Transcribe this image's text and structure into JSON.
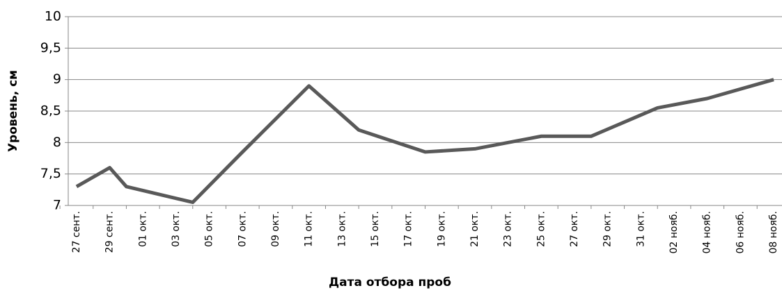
{
  "chart_data": {
    "type": "line",
    "x_label": "Дата отбора проб",
    "y_label": "Уровень, см",
    "x": [
      "09-27",
      "09-29",
      "09-30",
      "10-04",
      "10-07",
      "10-11",
      "10-14",
      "10-18",
      "10-21",
      "10-25",
      "10-28",
      "11-01",
      "11-04",
      "11-08"
    ],
    "series": [
      {
        "color": "#595959",
        "values": [
          7.3,
          7.6,
          7.3,
          7.05,
          7.85,
          8.9,
          8.2,
          7.85,
          7.9,
          8.1,
          8.1,
          8.55,
          8.7,
          9.0
        ]
      }
    ],
    "xlim": [
      "09-27",
      "11-08"
    ],
    "xticks": [
      {
        "value": "09-27",
        "label": "27 сент."
      },
      {
        "value": "09-29",
        "label": "29 сент."
      },
      {
        "value": "10-01",
        "label": "01 окт."
      },
      {
        "value": "10-03",
        "label": "03 окт."
      },
      {
        "value": "10-05",
        "label": "05 окт."
      },
      {
        "value": "10-07",
        "label": "07 окт."
      },
      {
        "value": "10-09",
        "label": "09 окт."
      },
      {
        "value": "10-11",
        "label": "11 окт."
      },
      {
        "value": "10-13",
        "label": "13 окт."
      },
      {
        "value": "10-15",
        "label": "15 окт."
      },
      {
        "value": "10-17",
        "label": "17 окт."
      },
      {
        "value": "10-19",
        "label": "19 окт."
      },
      {
        "value": "10-21",
        "label": "21 окт."
      },
      {
        "value": "10-23",
        "label": "23 окт."
      },
      {
        "value": "10-25",
        "label": "25 окт."
      },
      {
        "value": "10-27",
        "label": "27 окт."
      },
      {
        "value": "10-29",
        "label": "29 окт."
      },
      {
        "value": "10-31",
        "label": "31 окт."
      },
      {
        "value": "11-02",
        "label": "02 нояб."
      },
      {
        "value": "11-04",
        "label": "04 нояб."
      },
      {
        "value": "11-06",
        "label": "06 нояб."
      },
      {
        "value": "11-08",
        "label": "08 нояб."
      }
    ],
    "ylim": [
      7,
      10
    ],
    "yticks": [
      7,
      {
        "value": 7.5,
        "label": "7,5"
      },
      8,
      {
        "value": 8.5,
        "label": "8,5"
      },
      9,
      {
        "value": 9.5,
        "label": "9,5"
      },
      10
    ],
    "grid": true
  }
}
